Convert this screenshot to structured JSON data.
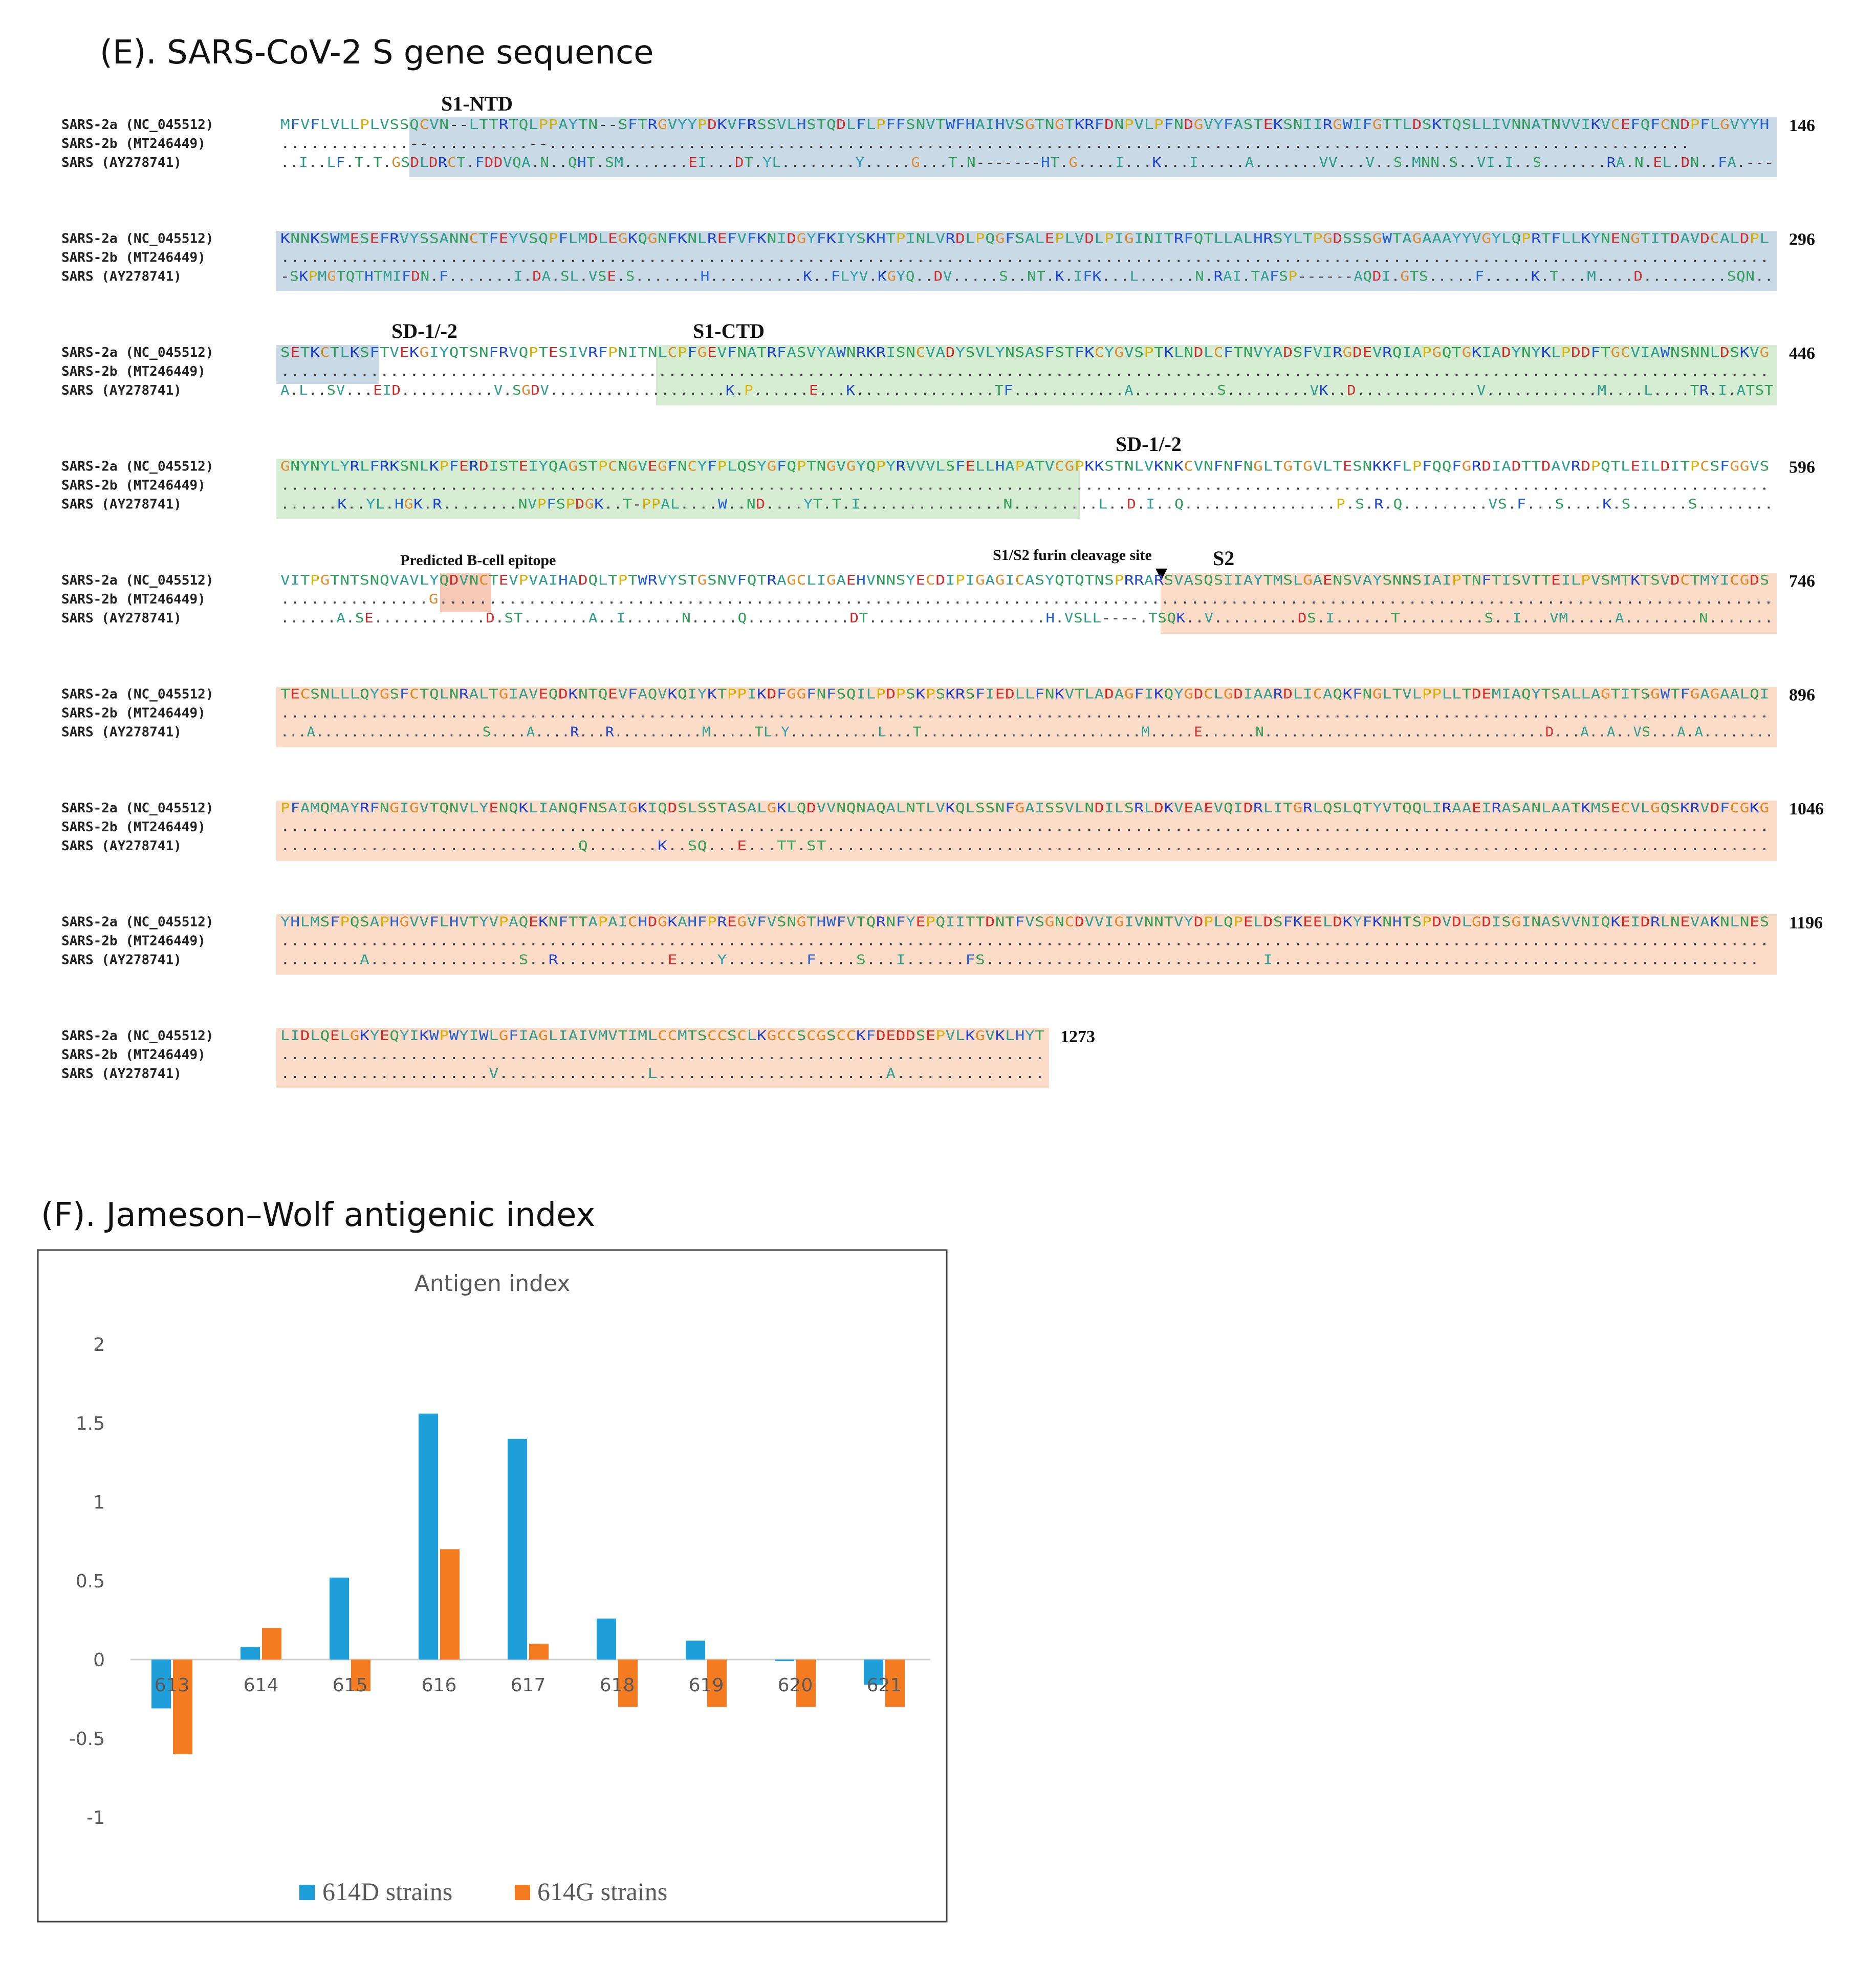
{
  "panel_e": {
    "title": "(E). SARS-CoV-2 S gene sequence",
    "row_labels": [
      "SARS-2a (NC_045512)",
      "SARS-2b (MT246449)",
      "SARS (AY278741)"
    ],
    "blocks": [
      {
        "end": "146",
        "seqs": [
          "MFVFLVLLPLVSSQCVN--LTTRTQLPPAYTN--SFTRGVYYPDKVFRSSVLHSTQDLFLPFFSNVTWFHAIHVSGTNGTKRFDNPVLPFNDGVYFASTEKSNIIRGWIFGTTLDSKTQSLLIVNNATNVVIKVCEFQFCNDPFLGVYYH",
          ".............--..........--...................................................................................................................",
          "..I..LF.T.T.GSDLDRCT.FDDVQA.N..QHT.SM.......EI...DT.YL........Y.....G...T.N-------HT.G....I...K...I.....A.......VV...V..S.MNN.S..VI.I..S.......RA.N.EL.DN..FA.---"
        ]
      },
      {
        "end": "296",
        "seqs": [
          "KNNKSWMESEFRVYSSANNCTFEYVSQPFLMDLEGKQGNFKNLREFVFKNIDGYFKIYSKHTPINLVRDLPQGFSALEPLVDLPIGINITRFQTLLALHRSYLTPGDSSSGWTAGAAAYYVGYLQPRTFLLKYNENGTITDAVDCALDPL",
          "......................................................................................................................................................",
          "-SKPMGTQTHTMIFDN.F.......I.DA.SL.VSE.S.......H..........K..FLYV.KGYQ..DV.....S..NT.K.IFK...L......N.RAI.TAFSP------AQDI.GTS.....F.....K.T...M....D.........SQN.."
        ]
      },
      {
        "end": "446",
        "seqs": [
          "SETKCTLKSFTVEKGIYQTSNFRVQPTESIVRFPNITNLCPFGEVFNATRFASVYAWNRKRISNCVADYSVLYNSASFSTFKCYGVSPTKLNDLCFTNVYADSFVIRGDEVRQIAPGQTGKIADYNYKLPDDFTGCVIAWNSNNLDSKVG",
          "......................................................................................................................................................",
          "A.L..SV...EID..........V.SGDV...................K.P......E...K...............TF............A.........S.........VK..D.............V............M....L....TR.I.ATST"
        ]
      },
      {
        "end": "596",
        "seqs": [
          "GNYNYLYRLFRKSNLKPFERDISTEIYQAGSTPCNGVEGFNCYFPLQSYGFQPTNGVGYQPYRVVVLSFELLHAPATVCGPKKSTNLVKNKCVNFNFNGLTGTGVLTESNKKFLPFQQFGRDIADTTDAVRDPQTLEILDITPCSFGGVS",
          "......................................................................................................................................................",
          "......K..YL.HGK.R........NVPFSPDGK..T-PPAL....W..ND....YT.T.I...............N.........L..D.I..Q................P.S.R.Q.........VS.F...S....K.S......S........"
        ]
      },
      {
        "end": "746",
        "seqs": [
          "VITPGTNTSNQVAVLYQDVNCTEVPVAIHADQLTPTWRVYSTGSNVFQTRAGCLIGAEHVNNSYECDIPIGAGICASYQTQTNSPRRARSVASQSIIAYTMSLGAENSVAYSNNSIAIPTNFTISVTTEILPVSMTKTSVDCTMYICGDS",
          "...............G.......................................................................................................................................",
          "......A.SE............D.ST.......A..I......N.....Q...........DT...................H.VSLL----.TSQK..V.........DS.I......T.........S..I...VM.....A........N......."
        ]
      },
      {
        "end": "896",
        "seqs": [
          "TECSNLLLQYGSFCTQLNRALTGIAVEQDKNTQEVFAQVKQIYKTPPIKDFGGFNFSQILPDPSKPSKRSFIEDLLFNKVTLADAGFIKQYGDCLGDIAARDLICAQKFNGLTVLPPLLTDEMIAQYTSALLAGTITSGWTFGAGAALQI",
          "......................................................................................................................................................",
          "...A...................S....A....R...R..........M.....TL.Y..........L...T.........................M.....E......N................................D...A..A..VS...A.A........"
        ]
      },
      {
        "end": "1046",
        "seqs": [
          "PFAMQMAYRFNGIGVTQNVLYENQKLIANQFNSAIGKIQDSLSSTASALGKLQDVVNQNAQALNTLVKQLSSNFGAISSVLNDILSRLDKVEAEVQIDRLITGRLQSLQTYVTQQLIRAAEIRASANLAATKMSECVLGQSKRVDFCGKG",
          "......................................................................................................................................................",
          "..............................Q.......K..SQ...E...TT.ST..............................................................................................."
        ]
      },
      {
        "end": "1196",
        "seqs": [
          "YHLMSFPQSAPHGVVFLHVTYVPAQEKNFTTAPAICHDGKAHFPREGVFVSNGTHWFVTQRNFYEPQIITTDNTFVSGNCDVVIGIVNNTVYDPLQPELDSFKEELDKYFKNHTSPDVDLGDISGINASVVNIQKEIDRLNEVAKNLNES",
          "......................................................................................................................................................",
          "........A...............S..R...........E....Y........F....S...I......FS............................I................................................."
        ]
      },
      {
        "end": "1273",
        "seqs": [
          "LIDLQELGKYEQYIKWPWYIWLGFIAGLIAIVMVTIMLCCMTSCCSCLKGCCSCGSCCKFDEDDSEPVLKGVKLHYT",
          ".............................................................................",
          ".....................V...............L.......................A..............."
        ]
      }
    ],
    "regions": [
      {
        "label": "S1-NTD"
      },
      {
        "label": "SD-1/-2"
      },
      {
        "label": "S1-CTD"
      },
      {
        "label": "SD-1/-2"
      },
      {
        "label": "Predicted B-cell epitope"
      },
      {
        "label": "S1/S2 furin cleavage site"
      },
      {
        "label": "S2"
      }
    ],
    "marker_glyph": "▼"
  },
  "panel_f": {
    "title": "(F). Jameson–Wolf antigenic index"
  },
  "chart_data": {
    "type": "bar",
    "title": "Antigen index",
    "categories": [
      "613",
      "614",
      "615",
      "616",
      "617",
      "618",
      "619",
      "620",
      "621"
    ],
    "series": [
      {
        "name": "614D strains",
        "color": "#1f9fd9",
        "values": [
          -0.31,
          0.08,
          0.52,
          1.56,
          1.4,
          0.26,
          0.12,
          -0.01,
          -0.16
        ]
      },
      {
        "name": "614G strains",
        "color": "#f47b20",
        "values": [
          -0.6,
          0.2,
          -0.2,
          0.7,
          0.1,
          -0.3,
          -0.3,
          -0.3,
          -0.3
        ]
      }
    ],
    "yticks": [
      "2",
      "1.5",
      "1",
      "0.5",
      "0",
      "-0.5",
      "-1"
    ],
    "ylim": [
      -1,
      2
    ],
    "xlabel": "",
    "ylabel": "",
    "grid": false,
    "legend_position": "bottom"
  }
}
